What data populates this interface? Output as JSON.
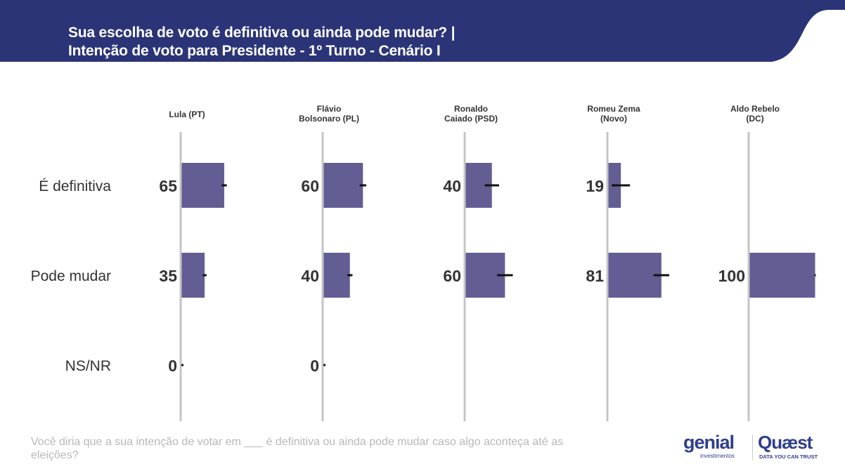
{
  "header": {
    "title_line1": "Sua escolha de voto é definitiva ou ainda pode mudar? |",
    "title_line2": "Intenção de voto para Presidente - 1º Turno - Cenário I",
    "background_color": "#2b3477"
  },
  "chart_data": {
    "type": "bar",
    "orientation": "horizontal",
    "layout": "small-multiples",
    "title": "Sua escolha de voto é definitiva ou ainda pode mudar? | Intenção de voto para Presidente - 1º Turno - Cenário I",
    "categories": [
      "É definitiva",
      "Pode mudar",
      "NS/NR"
    ],
    "xlim": [
      0,
      100
    ],
    "bar_color": "#625e94",
    "error_bars": true,
    "panels": [
      {
        "name": "Lula (PT)",
        "label_lines": [
          "Lula (PT)"
        ],
        "values": [
          65,
          35,
          0
        ]
      },
      {
        "name": "Flávio Bolsonaro (PL)",
        "label_lines": [
          "Flávio",
          "Bolsonaro (PL)"
        ],
        "values": [
          60,
          40,
          0
        ]
      },
      {
        "name": "Ronaldo Caiado (PSD)",
        "label_lines": [
          "Ronaldo",
          "Caiado (PSD)"
        ],
        "values": [
          40,
          60,
          null
        ]
      },
      {
        "name": "Romeu Zema (Novo)",
        "label_lines": [
          "Romeu Zema",
          "(Novo)"
        ],
        "values": [
          19,
          81,
          null
        ]
      },
      {
        "name": "Aldo Rebelo (DC)",
        "label_lines": [
          "Aldo Rebelo",
          "(DC)"
        ],
        "values": [
          null,
          100,
          null
        ]
      }
    ],
    "error_margins": [
      [
        4,
        3,
        0
      ],
      [
        5,
        4,
        0
      ],
      [
        11,
        12,
        null
      ],
      [
        14,
        12,
        null
      ],
      [
        null,
        1,
        null
      ]
    ]
  },
  "footnote": "Você diria que a sua intenção de votar em ___ é definitiva ou ainda pode mudar caso algo aconteça até as eleições?",
  "logos": {
    "genial": "genial",
    "genial_sub": "investimentos",
    "quaest": "Quæst",
    "quaest_sub": "DATA YOU CAN TRUST"
  }
}
